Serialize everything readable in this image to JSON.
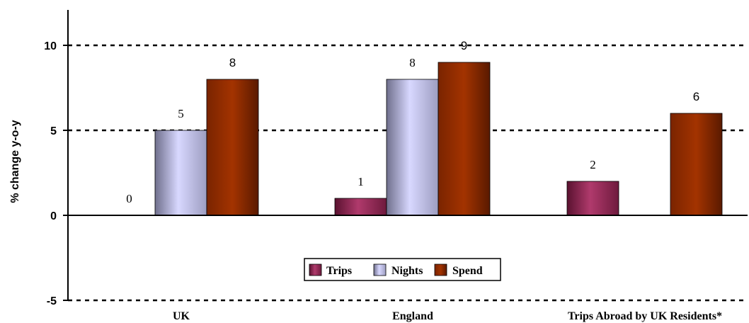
{
  "chart_data": {
    "type": "bar",
    "ylabel": "% change y-o-y",
    "ylim": [
      -5,
      12
    ],
    "yticks": [
      -5,
      0,
      5,
      10
    ],
    "grid": "dashed horizontal at ticks",
    "categories": [
      "UK",
      "England",
      "Trips Abroad by UK Residents*"
    ],
    "series": [
      {
        "name": "Trips",
        "color": "#9b2d5a",
        "values": [
          0,
          1,
          2
        ]
      },
      {
        "name": "Nights",
        "color": "#c9c9f5",
        "values": [
          5,
          8,
          null
        ]
      },
      {
        "name": "Spend",
        "color": "#9a2e00",
        "values": [
          8,
          9,
          6
        ]
      }
    ],
    "data_labels": [
      [
        "0",
        "1",
        "2"
      ],
      [
        "5",
        "8",
        ""
      ],
      [
        "8",
        "9",
        "6"
      ]
    ],
    "legend_position": "lower-center"
  }
}
